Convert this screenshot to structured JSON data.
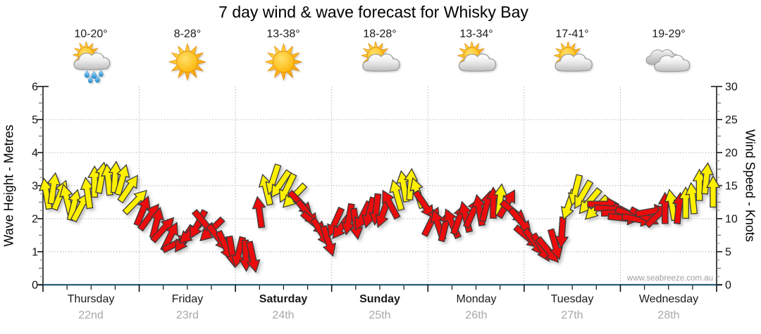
{
  "title": "7 day wind & wave forecast for Whisky Bay",
  "watermark": "www.seabreeze.com.au",
  "left_axis": {
    "label": "Wave Height - Metres",
    "min": 0,
    "max": 6,
    "ticks": [
      0,
      1,
      2,
      3,
      4,
      5,
      6
    ]
  },
  "right_axis": {
    "label": "Wind Speed - Knots",
    "min": 0,
    "max": 30,
    "ticks": [
      0,
      5,
      10,
      15,
      20,
      25,
      30
    ]
  },
  "colors": {
    "arrow_yellow": "#fff000",
    "arrow_red": "#ea0b0b",
    "arrow_outline": "#3a3a3a",
    "grid": "#b3b3b3",
    "axis": "#1a1a1a",
    "baseline": "#255c78",
    "tick_minor": "#8c8c8c",
    "date_text": "#a8a8a8"
  },
  "chart_data": {
    "type": "wind-arrows",
    "note": "arrow = [wind_speed_knots, direction_deg_clockwise_from_up, color y=yellow r=red]; vertical position reads on both axes (5 knots per metre); 14 samples per day",
    "grid": {
      "horizontal_metres": [
        1,
        2,
        3,
        4,
        5
      ],
      "vertical": "day boundaries",
      "style": "dotted"
    },
    "days": [
      {
        "name": "Thursday",
        "date": "22nd",
        "temp": "10-20°",
        "icon": "sun-rain",
        "bold": false,
        "arrows": [
          [
            13.8,
            -10,
            "y"
          ],
          [
            14.6,
            8,
            "y"
          ],
          [
            13.6,
            22,
            "y"
          ],
          [
            12.9,
            -14,
            "y"
          ],
          [
            12.1,
            14,
            "y"
          ],
          [
            11.8,
            28,
            "y"
          ],
          [
            13.9,
            -8,
            "y"
          ],
          [
            15.6,
            0,
            "y"
          ],
          [
            16.2,
            10,
            "y"
          ],
          [
            15.9,
            -6,
            "y"
          ],
          [
            16.3,
            4,
            "y"
          ],
          [
            15.9,
            16,
            "y"
          ],
          [
            14.6,
            34,
            "y"
          ],
          [
            12.6,
            44,
            "y"
          ]
        ]
      },
      {
        "name": "Friday",
        "date": "23rd",
        "temp": "8-28°",
        "icon": "sun",
        "bold": false,
        "arrows": [
          [
            11.2,
            22,
            "r"
          ],
          [
            10.3,
            36,
            "r"
          ],
          [
            9.4,
            14,
            "r"
          ],
          [
            8.4,
            42,
            "r"
          ],
          [
            7.3,
            26,
            "r"
          ],
          [
            6.3,
            64,
            "r"
          ],
          [
            6.9,
            214,
            "r"
          ],
          [
            7.9,
            226,
            "r"
          ],
          [
            9.1,
            208,
            "r"
          ],
          [
            9.3,
            140,
            "r"
          ],
          [
            8.3,
            226,
            "r"
          ],
          [
            7.1,
            142,
            "r"
          ],
          [
            5.9,
            156,
            "r"
          ],
          [
            5.0,
            170,
            "r"
          ]
        ]
      },
      {
        "name": "Saturday",
        "date": "24th",
        "temp": "13-38°",
        "icon": "sun",
        "bold": true,
        "arrows": [
          [
            4.9,
            194,
            "r"
          ],
          [
            4.4,
            178,
            "r"
          ],
          [
            4.2,
            168,
            "r"
          ],
          [
            11.0,
            -8,
            "r"
          ],
          [
            14.4,
            -14,
            "y"
          ],
          [
            15.9,
            198,
            "y"
          ],
          [
            15.2,
            214,
            "y"
          ],
          [
            14.6,
            206,
            "y"
          ],
          [
            13.4,
            224,
            "y"
          ],
          [
            12.3,
            136,
            "r"
          ],
          [
            10.8,
            142,
            "r"
          ],
          [
            9.3,
            130,
            "r"
          ],
          [
            7.9,
            148,
            "r"
          ],
          [
            6.6,
            162,
            "r"
          ]
        ]
      },
      {
        "name": "Sunday",
        "date": "25th",
        "temp": "18-28°",
        "icon": "sun-cloud",
        "bold": true,
        "arrows": [
          [
            9.4,
            204,
            "r"
          ],
          [
            8.9,
            216,
            "r"
          ],
          [
            9.9,
            190,
            "r"
          ],
          [
            9.2,
            172,
            "r"
          ],
          [
            10.4,
            206,
            "r"
          ],
          [
            10.9,
            194,
            "r"
          ],
          [
            11.4,
            186,
            "r"
          ],
          [
            10.9,
            200,
            "r"
          ],
          [
            12.2,
            -28,
            "r"
          ],
          [
            13.6,
            -16,
            "y"
          ],
          [
            14.9,
            -10,
            "y"
          ],
          [
            15.2,
            4,
            "y"
          ],
          [
            13.9,
            -18,
            "y"
          ],
          [
            12.1,
            146,
            "r"
          ]
        ]
      },
      {
        "name": "Monday",
        "date": "26th",
        "temp": "13-34°",
        "icon": "sun-cloud",
        "bold": false,
        "arrows": [
          [
            9.6,
            26,
            "r"
          ],
          [
            9.1,
            -18,
            "r"
          ],
          [
            8.9,
            14,
            "r"
          ],
          [
            9.3,
            -24,
            "r"
          ],
          [
            9.9,
            20,
            "r"
          ],
          [
            10.3,
            -14,
            "r"
          ],
          [
            10.9,
            24,
            "r"
          ],
          [
            11.3,
            -10,
            "r"
          ],
          [
            11.9,
            14,
            "r"
          ],
          [
            12.4,
            0,
            "r"
          ],
          [
            12.9,
            6,
            "y"
          ],
          [
            12.3,
            30,
            "r"
          ],
          [
            11.0,
            130,
            "r"
          ],
          [
            9.6,
            140,
            "r"
          ]
        ]
      },
      {
        "name": "Tuesday",
        "date": "27th",
        "temp": "17-41°",
        "icon": "sun-cloud",
        "bold": false,
        "arrows": [
          [
            7.2,
            130,
            "r"
          ],
          [
            6.4,
            144,
            "r"
          ],
          [
            5.6,
            150,
            "r"
          ],
          [
            5.2,
            140,
            "r"
          ],
          [
            6.1,
            164,
            "r"
          ],
          [
            7.9,
            184,
            "r"
          ],
          [
            12.1,
            200,
            "y"
          ],
          [
            14.3,
            194,
            "y"
          ],
          [
            13.6,
            210,
            "y"
          ],
          [
            12.6,
            220,
            "y"
          ],
          [
            11.6,
            224,
            "y"
          ],
          [
            12.2,
            90,
            "r"
          ],
          [
            11.5,
            94,
            "r"
          ],
          [
            10.9,
            88,
            "r"
          ]
        ]
      },
      {
        "name": "Wednesday",
        "date": "28th",
        "temp": "19-29°",
        "icon": "cloud",
        "bold": false,
        "arrows": [
          [
            10.1,
            96,
            "r"
          ],
          [
            10.6,
            110,
            "r"
          ],
          [
            9.9,
            100,
            "r"
          ],
          [
            10.3,
            118,
            "r"
          ],
          [
            11.1,
            80,
            "r"
          ],
          [
            10.6,
            46,
            "r"
          ],
          [
            11.6,
            0,
            "r"
          ],
          [
            12.1,
            -10,
            "y"
          ],
          [
            11.6,
            6,
            "r"
          ],
          [
            12.4,
            0,
            "y"
          ],
          [
            13.1,
            -6,
            "y"
          ],
          [
            15.1,
            0,
            "y"
          ],
          [
            16.1,
            6,
            "y"
          ],
          [
            14.1,
            0,
            "y"
          ]
        ]
      }
    ]
  }
}
